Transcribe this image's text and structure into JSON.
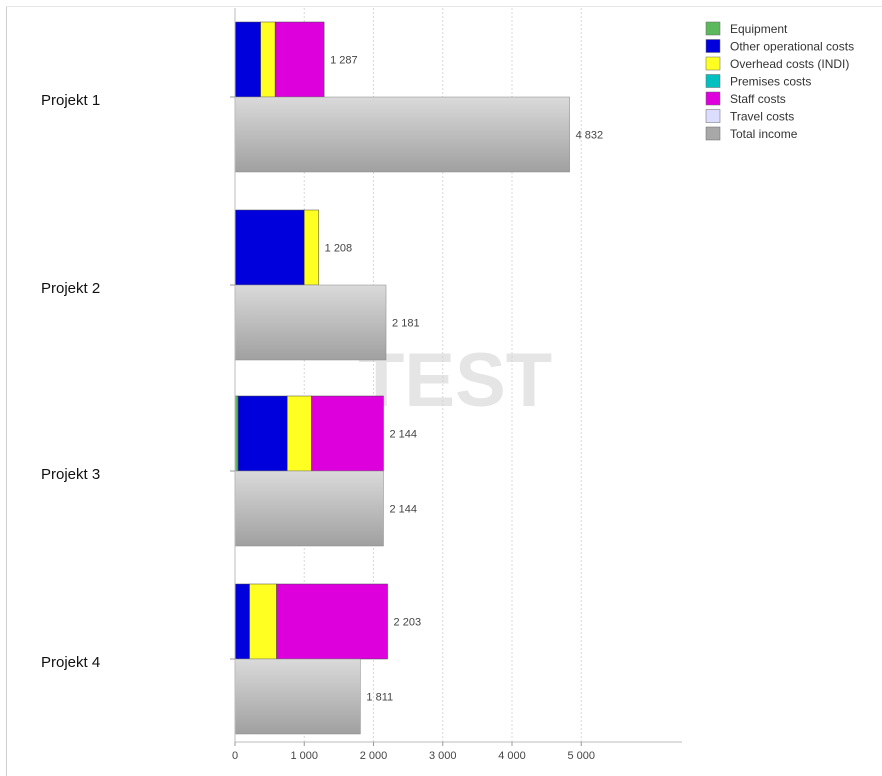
{
  "chart_data": {
    "type": "bar",
    "orientation": "horizontal",
    "stacked_costs": true,
    "categories": [
      "Projekt 1",
      "Projekt 2",
      "Projekt 3",
      "Projekt 4"
    ],
    "series": [
      {
        "name": "Equipment",
        "color": "#5cb85c",
        "values": [
          0,
          0,
          45,
          0
        ]
      },
      {
        "name": "Other operational costs",
        "color": "#0000dd",
        "values": [
          370,
          1000,
          710,
          210
        ]
      },
      {
        "name": "Overhead costs (INDI)",
        "color": "#ffff22",
        "values": [
          210,
          208,
          350,
          390
        ]
      },
      {
        "name": "Premises costs",
        "color": "#00c0c0",
        "values": [
          0,
          0,
          0,
          0
        ]
      },
      {
        "name": "Staff costs",
        "color": "#dd00dd",
        "values": [
          707,
          0,
          1039,
          1603
        ]
      },
      {
        "name": "Travel costs",
        "color": "#dcdcff",
        "values": [
          0,
          0,
          0,
          0
        ]
      },
      {
        "name": "Total income",
        "color": "#b0b0b0",
        "values": [
          4832,
          2181,
          2144,
          1811
        ]
      }
    ],
    "cost_totals": [
      "1 287",
      "1 208",
      "2 144",
      "2 203"
    ],
    "income_labels": [
      "4 832",
      "2 181",
      "2 144",
      "1 811"
    ],
    "x_ticks": [
      0,
      1000,
      2000,
      3000,
      4000,
      5000
    ],
    "x_tick_labels": [
      "0",
      "1 000",
      "2 000",
      "3 000",
      "4 000",
      "5 000"
    ],
    "xlim": [
      0,
      6500
    ],
    "grid": true,
    "legend_position": "top-right",
    "watermark": "TEST"
  }
}
